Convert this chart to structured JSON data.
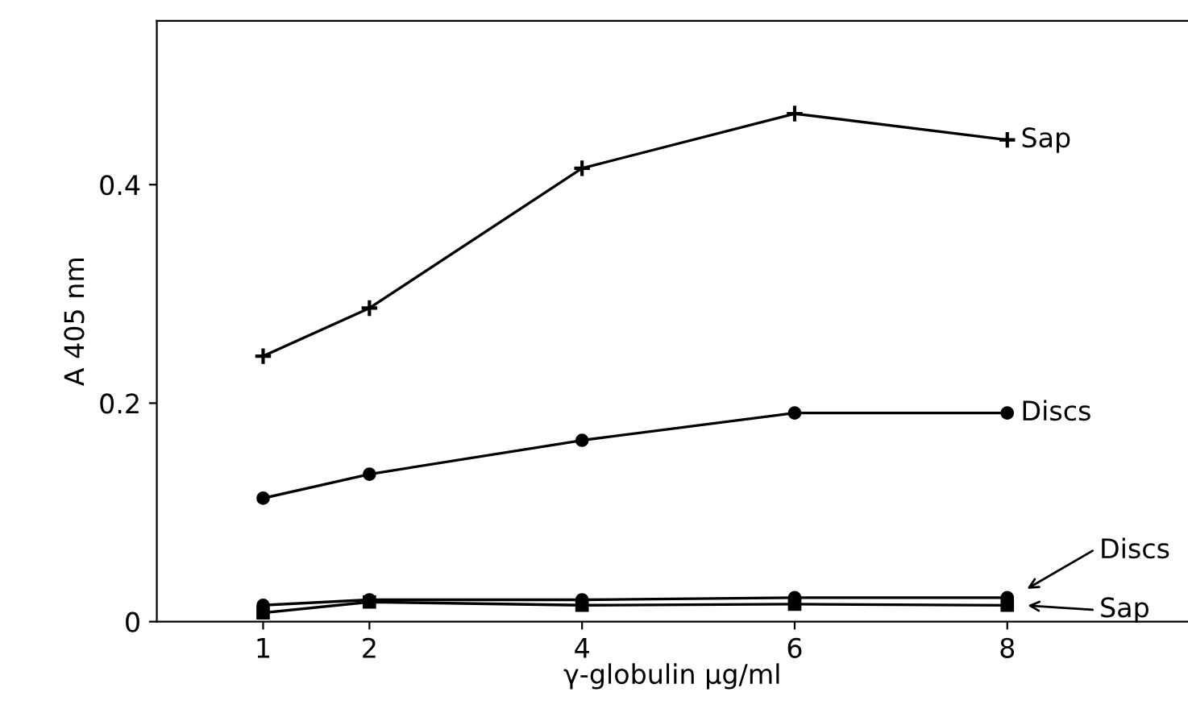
{
  "chart_data": {
    "type": "line",
    "xlabel": "γ-globulin µg/ml",
    "ylabel": "A 405 nm",
    "x": [
      1,
      2,
      4,
      6,
      8
    ],
    "series": [
      {
        "name": "Sap",
        "color": "#000000",
        "marker": "cross",
        "values": [
          0.243,
          0.287,
          0.415,
          0.465,
          0.441
        ]
      },
      {
        "name": "Discs",
        "color": "#000000",
        "marker": "circle",
        "values": [
          0.113,
          0.135,
          0.166,
          0.191,
          0.191
        ]
      },
      {
        "name": "Discs",
        "color": "#000000",
        "marker": "circle",
        "values": [
          0.015,
          0.02,
          0.02,
          0.022,
          0.022
        ]
      },
      {
        "name": "Sap",
        "color": "#000000",
        "marker": "square",
        "values": [
          0.008,
          0.018,
          0.015,
          0.016,
          0.015
        ]
      }
    ],
    "xlim": [
      0,
      9.7
    ],
    "ylim": [
      0,
      0.55
    ],
    "xticks": [
      1,
      2,
      4,
      6,
      8
    ],
    "yticks": [
      0,
      0.2,
      0.4
    ],
    "grid": false,
    "legend": "right",
    "line_style": "solid"
  }
}
